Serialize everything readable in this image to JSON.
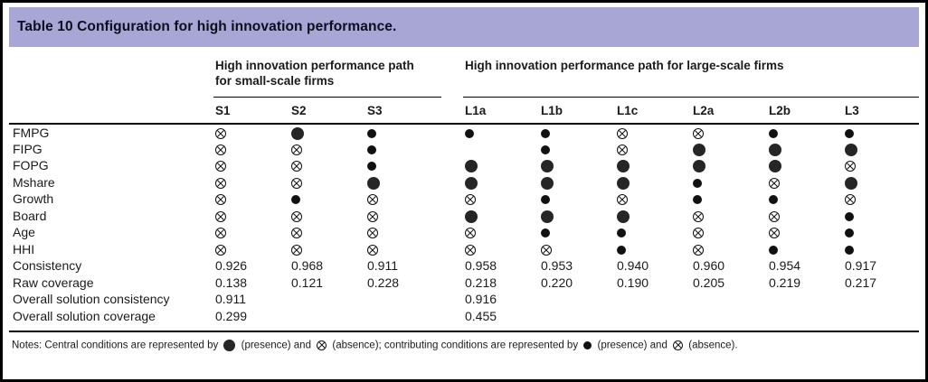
{
  "title": "Table 10 Configuration for high innovation performance.",
  "colors": {
    "header_band": "#a7a6d4",
    "border": "#000000",
    "symbol_fill": "#262626"
  },
  "groups": [
    {
      "label": "High innovation performance path for small-scale firms"
    },
    {
      "label": "High innovation performance path for large-scale firms"
    }
  ],
  "columns": [
    "S1",
    "S2",
    "S3",
    "L1a",
    "L1b",
    "L1c",
    "L2a",
    "L2b",
    "L3"
  ],
  "legend_codes": {
    "central-presence": "large filled circle (presence, central condition)",
    "contrib-presence": "small filled circle (presence, contributing condition)",
    "absence": "crossed circle (absence)",
    "blank": "empty cell"
  },
  "condition_rows": [
    {
      "label": "FMPG",
      "cells": [
        "absence",
        "central-presence",
        "contrib-presence",
        "contrib-presence",
        "contrib-presence",
        "absence",
        "absence",
        "contrib-presence",
        "contrib-presence"
      ]
    },
    {
      "label": "FIPG",
      "cells": [
        "absence",
        "absence",
        "contrib-presence",
        "blank",
        "contrib-presence",
        "absence",
        "central-presence",
        "central-presence",
        "central-presence"
      ]
    },
    {
      "label": "FOPG",
      "cells": [
        "absence",
        "absence",
        "contrib-presence",
        "central-presence",
        "central-presence",
        "central-presence",
        "central-presence",
        "central-presence",
        "absence"
      ]
    },
    {
      "label": "Mshare",
      "cells": [
        "absence",
        "absence",
        "central-presence",
        "central-presence",
        "central-presence",
        "central-presence",
        "contrib-presence",
        "absence",
        "central-presence"
      ]
    },
    {
      "label": "Growth",
      "cells": [
        "absence",
        "contrib-presence",
        "absence",
        "absence",
        "contrib-presence",
        "absence",
        "contrib-presence",
        "contrib-presence",
        "absence"
      ]
    },
    {
      "label": "Board",
      "cells": [
        "absence",
        "absence",
        "absence",
        "central-presence",
        "central-presence",
        "central-presence",
        "absence",
        "absence",
        "contrib-presence"
      ]
    },
    {
      "label": "Age",
      "cells": [
        "absence",
        "absence",
        "absence",
        "absence",
        "contrib-presence",
        "contrib-presence",
        "absence",
        "absence",
        "contrib-presence"
      ]
    },
    {
      "label": "HHI",
      "cells": [
        "absence",
        "absence",
        "absence",
        "absence",
        "absence",
        "contrib-presence",
        "absence",
        "contrib-presence",
        "contrib-presence"
      ]
    }
  ],
  "stat_rows": [
    {
      "label": "Consistency",
      "values": [
        "0.926",
        "0.968",
        "0.911",
        "0.958",
        "0.953",
        "0.940",
        "0.960",
        "0.954",
        "0.917"
      ]
    },
    {
      "label": "Raw coverage",
      "values": [
        "0.138",
        "0.121",
        "0.228",
        "0.218",
        "0.220",
        "0.190",
        "0.205",
        "0.219",
        "0.217"
      ]
    },
    {
      "label": "Overall solution consistency",
      "values": [
        "0.911",
        "",
        "",
        "0.916",
        "",
        "",
        "",
        "",
        ""
      ]
    },
    {
      "label": "Overall solution coverage",
      "values": [
        "0.299",
        "",
        "",
        "0.455",
        "",
        "",
        "",
        "",
        ""
      ]
    }
  ],
  "notes": {
    "prefix": "Notes: Central conditions are represented by",
    "seg1": "(presence) and",
    "seg2": "(absence); contributing conditions are represented by",
    "seg3": "(presence) and",
    "seg4": "(absence)."
  }
}
